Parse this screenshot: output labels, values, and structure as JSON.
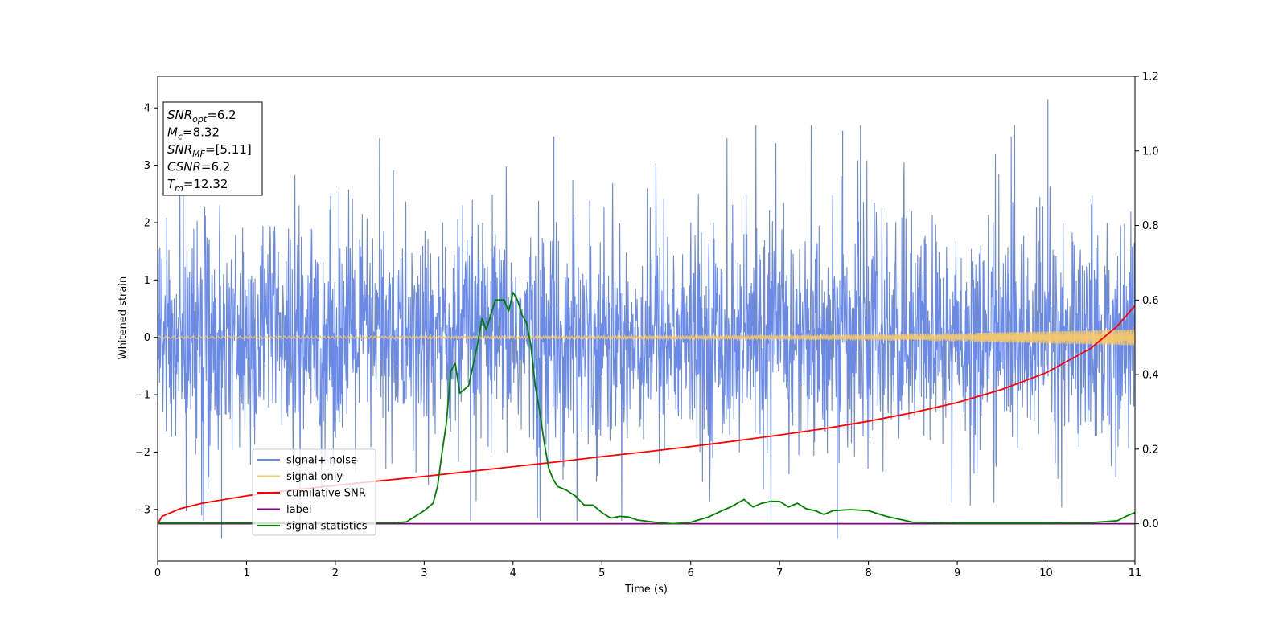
{
  "chart_data": {
    "type": "line",
    "xlabel": "Time (s)",
    "ylabel": "Whitened strain",
    "xlim": [
      0,
      11
    ],
    "ylim_left": [
      -3.9,
      4.55
    ],
    "ylim_right": [
      -0.1,
      1.2
    ],
    "x_ticks": [
      0,
      1,
      2,
      3,
      4,
      5,
      6,
      7,
      8,
      9,
      10,
      11
    ],
    "y_left_ticks": [
      -3,
      -2,
      -1,
      0,
      1,
      2,
      3,
      4
    ],
    "y_right_ticks": [
      0.0,
      0.2,
      0.4,
      0.6,
      0.8,
      1.0,
      1.2
    ],
    "grid": false,
    "legend_position": "lower-left",
    "info_box": [
      {
        "base": "SNR",
        "sub": "opt",
        "value": "=6.2"
      },
      {
        "base": "M",
        "sub": "c",
        "value": "=8.32"
      },
      {
        "base": "SNR",
        "sub": "MF",
        "value": "=[5.11]"
      },
      {
        "base": "CSNR",
        "sub": "",
        "value": "=6.2"
      },
      {
        "base": "T",
        "sub": "m",
        "value": "=12.32"
      }
    ],
    "series": [
      {
        "name": "signal+ noise",
        "color": "#6a8ae6",
        "axis": "left",
        "kind": "noise",
        "noise_sigma": 1.0,
        "noise_extreme_max": 4.15,
        "noise_extreme_min": -3.5
      },
      {
        "name": "signal only",
        "color": "#f5c96b",
        "axis": "left",
        "kind": "chirp",
        "amplitude_start": 0.02,
        "amplitude_end": 0.14
      },
      {
        "name": "cumilative SNR",
        "color": "#ff0000",
        "axis": "right",
        "x": [
          0,
          0.05,
          0.25,
          0.5,
          1,
          1.5,
          2,
          2.5,
          3,
          3.5,
          4,
          4.5,
          5,
          5.5,
          6,
          6.5,
          7,
          7.5,
          8,
          8.5,
          9,
          9.5,
          10,
          10.5,
          10.8,
          11
        ],
        "y": [
          0.0,
          0.02,
          0.04,
          0.055,
          0.075,
          0.09,
          0.103,
          0.115,
          0.127,
          0.14,
          0.153,
          0.166,
          0.18,
          0.193,
          0.207,
          0.222,
          0.238,
          0.255,
          0.275,
          0.298,
          0.325,
          0.36,
          0.405,
          0.47,
          0.53,
          0.585
        ]
      },
      {
        "name": "label",
        "color": "#800080",
        "axis": "right",
        "x": [
          0,
          11
        ],
        "y": [
          0.0,
          0.0
        ]
      },
      {
        "name": "signal statistics",
        "color": "#008000",
        "axis": "right",
        "x": [
          0,
          2.7,
          2.8,
          2.9,
          3.0,
          3.1,
          3.15,
          3.2,
          3.25,
          3.3,
          3.35,
          3.4,
          3.45,
          3.5,
          3.6,
          3.65,
          3.7,
          3.75,
          3.8,
          3.85,
          3.9,
          3.95,
          4.0,
          4.05,
          4.1,
          4.15,
          4.2,
          4.25,
          4.3,
          4.35,
          4.4,
          4.45,
          4.5,
          4.6,
          4.7,
          4.8,
          4.9,
          5.0,
          5.1,
          5.2,
          5.3,
          5.4,
          5.6,
          5.8,
          6.0,
          6.2,
          6.35,
          6.45,
          6.6,
          6.7,
          6.8,
          6.9,
          7.0,
          7.1,
          7.2,
          7.3,
          7.4,
          7.5,
          7.6,
          7.8,
          8.0,
          8.2,
          8.5,
          9.0,
          10.0,
          10.5,
          10.8,
          10.9,
          11.0
        ],
        "y": [
          0.002,
          0.003,
          0.005,
          0.02,
          0.035,
          0.055,
          0.1,
          0.19,
          0.27,
          0.41,
          0.43,
          0.35,
          0.36,
          0.37,
          0.48,
          0.55,
          0.52,
          0.56,
          0.6,
          0.6,
          0.6,
          0.57,
          0.62,
          0.6,
          0.56,
          0.54,
          0.48,
          0.37,
          0.3,
          0.22,
          0.15,
          0.12,
          0.1,
          0.09,
          0.075,
          0.05,
          0.05,
          0.03,
          0.015,
          0.02,
          0.018,
          0.01,
          0.004,
          0.0,
          0.004,
          0.018,
          0.035,
          0.045,
          0.065,
          0.045,
          0.055,
          0.06,
          0.06,
          0.045,
          0.055,
          0.04,
          0.035,
          0.025,
          0.035,
          0.038,
          0.035,
          0.02,
          0.004,
          0.002,
          0.002,
          0.003,
          0.008,
          0.02,
          0.03
        ]
      }
    ]
  }
}
